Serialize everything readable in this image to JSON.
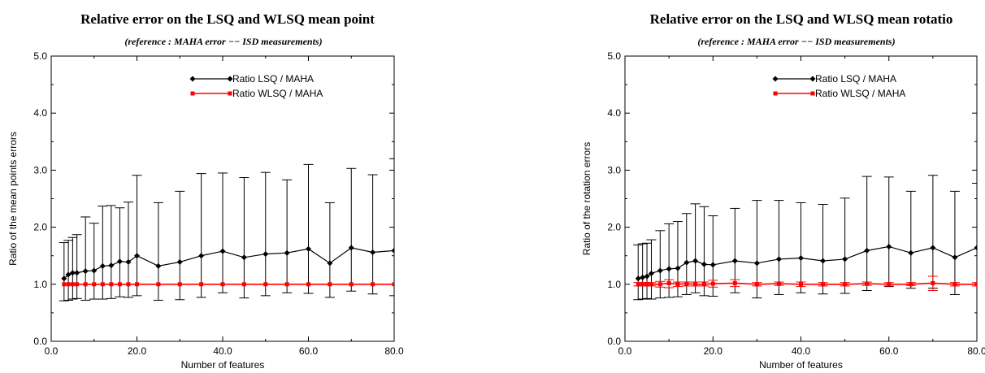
{
  "chart_data": [
    {
      "type": "line",
      "title": "Relative error on the LSQ and WLSQ mean point",
      "subtitle": "(reference : MAHA error  −−  ISD measurements)",
      "xlabel": "Number of features",
      "ylabel": "Ratio of the mean points errors",
      "xlim": [
        0,
        80
      ],
      "ylim": [
        0,
        5
      ],
      "xticks": [
        "0.0",
        "20.0",
        "40.0",
        "60.0",
        "80.0"
      ],
      "yticks": [
        "0.0",
        "1.0",
        "2.0",
        "3.0",
        "4.0",
        "5.0"
      ],
      "x": [
        3,
        4,
        5,
        6,
        8,
        10,
        12,
        14,
        16,
        18,
        20,
        25,
        30,
        35,
        40,
        45,
        50,
        55,
        60,
        65,
        70,
        75,
        80
      ],
      "legend_position": "top-right",
      "series": [
        {
          "name": "Ratio LSQ / MAHA",
          "color": "#000000",
          "marker": "diamond",
          "values": [
            1.1,
            1.17,
            1.2,
            1.2,
            1.23,
            1.24,
            1.32,
            1.33,
            1.4,
            1.39,
            1.5,
            1.32,
            1.39,
            1.5,
            1.58,
            1.47,
            1.53,
            1.55,
            1.62,
            1.37,
            1.64,
            1.56,
            1.59
          ],
          "err_high": [
            1.73,
            1.77,
            1.82,
            1.87,
            2.18,
            2.07,
            2.37,
            2.38,
            2.34,
            2.44,
            2.91,
            2.43,
            2.63,
            2.94,
            2.95,
            2.87,
            2.96,
            2.83,
            3.1,
            2.43,
            3.03,
            2.92,
            3.2
          ],
          "err_low": [
            0.71,
            0.72,
            0.74,
            0.75,
            0.72,
            0.74,
            0.74,
            0.75,
            0.78,
            0.77,
            0.8,
            0.72,
            0.73,
            0.77,
            0.85,
            0.76,
            0.8,
            0.85,
            0.84,
            0.77,
            0.88,
            0.83,
            0.8
          ]
        },
        {
          "name": "Ratio WLSQ / MAHA",
          "color": "#ff0000",
          "marker": "square",
          "values": [
            1.0,
            1.0,
            1.0,
            1.0,
            1.0,
            1.0,
            1.0,
            1.0,
            1.0,
            1.0,
            1.0,
            1.0,
            1.0,
            1.0,
            1.0,
            1.0,
            1.0,
            1.0,
            1.0,
            1.0,
            1.0,
            1.0,
            1.0
          ],
          "err_high": [
            1.0,
            1.0,
            1.0,
            1.0,
            1.0,
            1.0,
            1.0,
            1.0,
            1.0,
            1.0,
            1.0,
            1.0,
            1.0,
            1.0,
            1.0,
            1.0,
            1.0,
            1.0,
            1.0,
            1.0,
            1.0,
            1.0,
            1.0
          ],
          "err_low": [
            1.0,
            1.0,
            1.0,
            1.0,
            1.0,
            1.0,
            1.0,
            1.0,
            1.0,
            1.0,
            1.0,
            1.0,
            1.0,
            1.0,
            1.0,
            1.0,
            1.0,
            1.0,
            1.0,
            1.0,
            1.0,
            1.0,
            1.0
          ]
        }
      ]
    },
    {
      "type": "line",
      "title": "Relative error on the LSQ and WLSQ mean rotatio",
      "subtitle": "(reference : MAHA error  −−  ISD measurements)",
      "xlabel": "Number of features",
      "ylabel": "Ratio of the rotation errors",
      "xlim": [
        0,
        80
      ],
      "ylim": [
        0,
        5
      ],
      "xticks": [
        "0.0",
        "20.0",
        "40.0",
        "60.0",
        "80.0"
      ],
      "yticks": [
        "0.0",
        "1.0",
        "2.0",
        "3.0",
        "4.0",
        "5.0"
      ],
      "x": [
        3,
        4,
        5,
        6,
        8,
        10,
        12,
        14,
        16,
        18,
        20,
        25,
        30,
        35,
        40,
        45,
        50,
        55,
        60,
        65,
        70,
        75,
        80
      ],
      "legend_position": "top-right",
      "series": [
        {
          "name": "Ratio LSQ / MAHA",
          "color": "#000000",
          "marker": "diamond",
          "values": [
            1.1,
            1.12,
            1.14,
            1.19,
            1.24,
            1.27,
            1.28,
            1.38,
            1.41,
            1.35,
            1.34,
            1.41,
            1.37,
            1.44,
            1.46,
            1.41,
            1.44,
            1.59,
            1.66,
            1.55,
            1.64,
            1.47,
            1.64
          ],
          "err_high": [
            1.69,
            1.71,
            1.72,
            1.78,
            1.94,
            2.06,
            2.1,
            2.24,
            2.41,
            2.36,
            2.2,
            2.33,
            2.47,
            2.47,
            2.43,
            2.4,
            2.51,
            2.89,
            2.88,
            2.63,
            2.91,
            2.63,
            2.77
          ],
          "err_low": [
            0.73,
            0.74,
            0.75,
            0.74,
            0.76,
            0.77,
            0.78,
            0.82,
            0.85,
            0.8,
            0.79,
            0.85,
            0.76,
            0.82,
            0.85,
            0.83,
            0.84,
            0.89,
            0.96,
            0.93,
            0.93,
            0.82,
            1.0
          ]
        },
        {
          "name": "Ratio WLSQ / MAHA",
          "color": "#ff0000",
          "marker": "square",
          "values": [
            1.0,
            1.0,
            1.0,
            1.0,
            1.0,
            1.02,
            1.0,
            1.01,
            1.0,
            1.0,
            1.01,
            1.02,
            1.0,
            1.01,
            1.0,
            1.0,
            1.0,
            1.01,
            1.0,
            1.0,
            1.02,
            1.0,
            1.0
          ],
          "err_high": [
            1.03,
            1.03,
            1.03,
            1.03,
            1.05,
            1.08,
            1.04,
            1.04,
            1.04,
            1.04,
            1.07,
            1.08,
            1.03,
            1.04,
            1.04,
            1.03,
            1.03,
            1.04,
            1.03,
            1.03,
            1.14,
            1.03,
            1.03
          ],
          "err_low": [
            0.97,
            0.97,
            0.97,
            0.97,
            0.95,
            0.94,
            0.96,
            0.97,
            0.97,
            0.97,
            0.95,
            0.96,
            0.97,
            0.98,
            0.96,
            0.97,
            0.97,
            0.98,
            0.97,
            0.98,
            0.89,
            0.97,
            0.97
          ]
        }
      ]
    }
  ]
}
